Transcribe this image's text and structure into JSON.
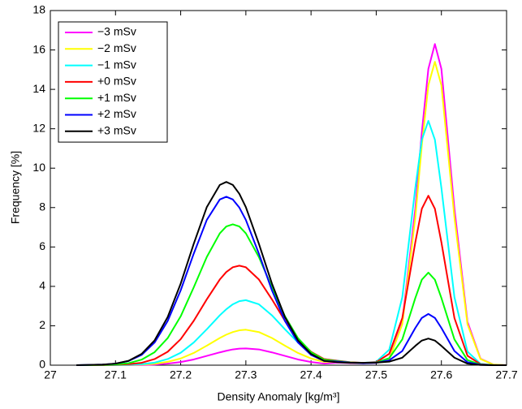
{
  "chart_data": {
    "type": "line",
    "xlabel": "Density Anomaly [kg/m³]",
    "ylabel": "Frequency [%]",
    "xlim": [
      27,
      27.7
    ],
    "ylim": [
      0,
      18
    ],
    "xticks": [
      27,
      27.1,
      27.2,
      27.3,
      27.4,
      27.5,
      27.6,
      27.7
    ],
    "yticks": [
      0,
      2,
      4,
      6,
      8,
      10,
      12,
      14,
      16,
      18
    ],
    "grid": false,
    "legend_position": "upper left",
    "x": [
      27.04,
      27.08,
      27.1,
      27.12,
      27.14,
      27.16,
      27.18,
      27.2,
      27.22,
      27.24,
      27.26,
      27.27,
      27.28,
      27.29,
      27.3,
      27.32,
      27.34,
      27.36,
      27.38,
      27.4,
      27.42,
      27.44,
      27.46,
      27.48,
      27.5,
      27.52,
      27.54,
      27.56,
      27.57,
      27.58,
      27.59,
      27.6,
      27.62,
      27.64,
      27.66,
      27.68,
      27.7
    ],
    "series": [
      {
        "name": "−3 mSv",
        "color": "#ff00ff",
        "values": [
          0,
          0,
          0,
          0,
          0.01,
          0.03,
          0.08,
          0.16,
          0.29,
          0.47,
          0.65,
          0.73,
          0.8,
          0.84,
          0.85,
          0.8,
          0.65,
          0.47,
          0.29,
          0.16,
          0.08,
          0.13,
          0.11,
          0.1,
          0.12,
          0.33,
          2.2,
          7.94,
          11.83,
          15.04,
          16.3,
          15.04,
          7.94,
          2.2,
          0.33,
          0.03,
          0
        ]
      },
      {
        "name": "−2 mSv",
        "color": "#ffff00",
        "values": [
          0,
          0,
          0,
          0.01,
          0.03,
          0.07,
          0.17,
          0.34,
          0.62,
          0.99,
          1.38,
          1.55,
          1.68,
          1.77,
          1.8,
          1.68,
          1.38,
          0.99,
          0.62,
          0.34,
          0.17,
          0.17,
          0.13,
          0.11,
          0.13,
          0.31,
          2.08,
          7.5,
          11.18,
          14.21,
          15.4,
          14.21,
          7.5,
          2.08,
          0.31,
          0.03,
          0
        ]
      },
      {
        "name": "−1 mSv",
        "color": "#00ffff",
        "values": [
          0,
          0,
          0,
          0.02,
          0.05,
          0.13,
          0.31,
          0.63,
          1.15,
          1.82,
          2.53,
          2.84,
          3.09,
          3.25,
          3.3,
          3.09,
          2.53,
          1.82,
          1.15,
          0.63,
          0.31,
          0.23,
          0.15,
          0.12,
          0.17,
          0.79,
          3.45,
          9.0,
          11.45,
          12.4,
          11.45,
          9.0,
          3.45,
          0.69,
          0.07,
          0,
          0
        ]
      },
      {
        "name": "+0 mSv",
        "color": "#ff0000",
        "values": [
          0,
          0,
          0.02,
          0.05,
          0.12,
          0.31,
          0.68,
          1.32,
          2.25,
          3.34,
          4.35,
          4.73,
          4.97,
          5.05,
          4.97,
          4.35,
          3.34,
          2.25,
          1.32,
          0.68,
          0.31,
          0.22,
          0.15,
          0.12,
          0.15,
          0.58,
          2.39,
          6.24,
          7.94,
          8.6,
          7.94,
          6.24,
          2.39,
          0.48,
          0.05,
          0,
          0
        ]
      },
      {
        "name": "+1 mSv",
        "color": "#00ff00",
        "values": [
          0,
          0.01,
          0.04,
          0.1,
          0.28,
          0.66,
          1.37,
          2.48,
          3.95,
          5.49,
          6.69,
          7.04,
          7.15,
          7.04,
          6.69,
          5.49,
          3.95,
          2.48,
          1.37,
          0.66,
          0.28,
          0.2,
          0.14,
          0.11,
          0.13,
          0.36,
          1.31,
          3.41,
          4.34,
          4.7,
          4.34,
          3.41,
          1.31,
          0.26,
          0.03,
          0,
          0
        ]
      },
      {
        "name": "+2 mSv",
        "color": "#0000ff",
        "values": [
          0,
          0.03,
          0.08,
          0.21,
          0.52,
          1.15,
          2.24,
          3.8,
          5.66,
          7.37,
          8.41,
          8.55,
          8.41,
          8.0,
          7.37,
          5.66,
          3.8,
          2.24,
          1.15,
          0.52,
          0.21,
          0.18,
          0.13,
          0.1,
          0.12,
          0.25,
          0.72,
          1.89,
          2.4,
          2.6,
          2.4,
          1.89,
          0.72,
          0.15,
          0.02,
          0,
          0
        ]
      },
      {
        "name": "+3 mSv",
        "color": "#000000",
        "values": [
          0,
          0.03,
          0.08,
          0.22,
          0.57,
          1.26,
          2.44,
          4.14,
          6.16,
          8.02,
          9.15,
          9.3,
          9.15,
          8.7,
          8.02,
          6.16,
          4.14,
          2.44,
          1.26,
          0.57,
          0.22,
          0.15,
          0.12,
          0.12,
          0.13,
          0.18,
          0.38,
          0.98,
          1.25,
          1.35,
          1.25,
          0.98,
          0.38,
          0.08,
          0.01,
          0,
          0
        ]
      }
    ]
  }
}
